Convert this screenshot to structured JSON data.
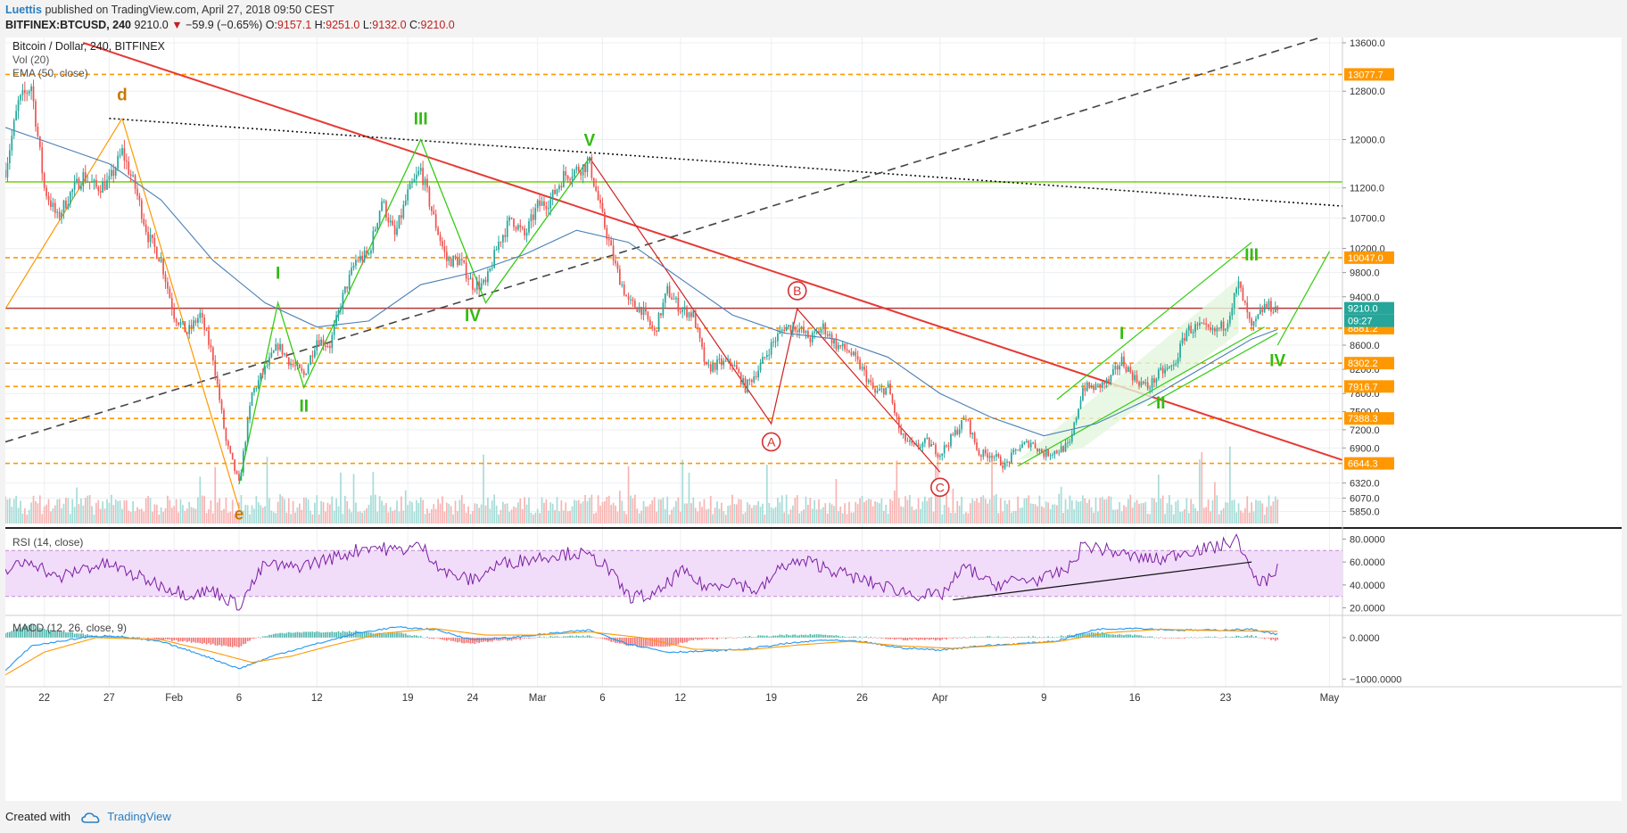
{
  "header": {
    "author": "Luettis",
    "published_text": "published on TradingView.com, April 27, 2018 09:50 CEST",
    "symbol": "BITFINEX:BTCUSD, 240",
    "last": "9210.0",
    "change_arrow": "▼",
    "change": "−59.9 (−0.65%)",
    "ohlc": [
      {
        "k": "O:",
        "v": "9157.1"
      },
      {
        "k": "H:",
        "v": "9251.0"
      },
      {
        "k": "L:",
        "v": "9132.0"
      },
      {
        "k": "C:",
        "v": "9210.0"
      }
    ]
  },
  "footer": {
    "created_with": "Created with",
    "brand": "TradingView"
  },
  "chart_data": {
    "type": "candlestick",
    "title": "Bitcoin / Dollar, 240, BITFINEX",
    "indicators": [
      "Vol (20)",
      "EMA (50, close)"
    ],
    "x_range": [
      "2018-01-19",
      "2018-05-02"
    ],
    "x_ticks": [
      {
        "date": "2018-01-22",
        "label": "22"
      },
      {
        "date": "2018-01-27",
        "label": "27"
      },
      {
        "date": "2018-02-01",
        "label": "Feb"
      },
      {
        "date": "2018-02-06",
        "label": "6"
      },
      {
        "date": "2018-02-12",
        "label": "12"
      },
      {
        "date": "2018-02-19",
        "label": "19"
      },
      {
        "date": "2018-02-24",
        "label": "24"
      },
      {
        "date": "2018-03-01",
        "label": "Mar"
      },
      {
        "date": "2018-03-06",
        "label": "6"
      },
      {
        "date": "2018-03-12",
        "label": "12"
      },
      {
        "date": "2018-03-19",
        "label": "19"
      },
      {
        "date": "2018-03-26",
        "label": "26"
      },
      {
        "date": "2018-04-01",
        "label": "Apr"
      },
      {
        "date": "2018-04-09",
        "label": "9"
      },
      {
        "date": "2018-04-16",
        "label": "16"
      },
      {
        "date": "2018-04-23",
        "label": "23"
      },
      {
        "date": "2018-05-01",
        "label": "May"
      }
    ],
    "price_axis": {
      "range": [
        5650,
        13600
      ],
      "ticks": [
        "13600.0",
        "12800.0",
        "12000.0",
        "11200.0",
        "10700.0",
        "10200.0",
        "9800.0",
        "9400.0",
        "8600.0",
        "8200.0",
        "7800.0",
        "7500.0",
        "7200.0",
        "6900.0",
        "6320.0",
        "6070.0",
        "5850.0"
      ]
    },
    "price_path": [
      [
        "2018-01-19",
        11500
      ],
      [
        "2018-01-20",
        12600
      ],
      [
        "2018-01-21",
        12900
      ],
      [
        "2018-01-22",
        11200
      ],
      [
        "2018-01-23",
        10700
      ],
      [
        "2018-01-24",
        11100
      ],
      [
        "2018-01-25",
        11400
      ],
      [
        "2018-01-26",
        11200
      ],
      [
        "2018-01-27",
        11300
      ],
      [
        "2018-01-28",
        11800
      ],
      [
        "2018-01-29",
        11200
      ],
      [
        "2018-01-30",
        10400
      ],
      [
        "2018-01-31",
        10000
      ],
      [
        "2018-02-01",
        9100
      ],
      [
        "2018-02-02",
        8800
      ],
      [
        "2018-02-03",
        9100
      ],
      [
        "2018-02-04",
        8400
      ],
      [
        "2018-02-05",
        7000
      ],
      [
        "2018-02-06",
        6300
      ],
      [
        "2018-02-07",
        7800
      ],
      [
        "2018-02-08",
        8200
      ],
      [
        "2018-02-09",
        8600
      ],
      [
        "2018-02-10",
        8300
      ],
      [
        "2018-02-11",
        8100
      ],
      [
        "2018-02-12",
        8700
      ],
      [
        "2018-02-13",
        8600
      ],
      [
        "2018-02-14",
        9400
      ],
      [
        "2018-02-15",
        10000
      ],
      [
        "2018-02-16",
        10100
      ],
      [
        "2018-02-17",
        11000
      ],
      [
        "2018-02-18",
        10400
      ],
      [
        "2018-02-19",
        11100
      ],
      [
        "2018-02-20",
        11500
      ],
      [
        "2018-02-21",
        10700
      ],
      [
        "2018-02-22",
        10000
      ],
      [
        "2018-02-23",
        10000
      ],
      [
        "2018-02-24",
        9600
      ],
      [
        "2018-02-25",
        9600
      ],
      [
        "2018-02-26",
        10300
      ],
      [
        "2018-02-27",
        10700
      ],
      [
        "2018-02-28",
        10400
      ],
      [
        "2018-03-01",
        10900
      ],
      [
        "2018-03-02",
        11000
      ],
      [
        "2018-03-03",
        11400
      ],
      [
        "2018-03-04",
        11500
      ],
      [
        "2018-03-05",
        11600
      ],
      [
        "2018-03-06",
        10700
      ],
      [
        "2018-03-07",
        9900
      ],
      [
        "2018-03-08",
        9300
      ],
      [
        "2018-03-09",
        9200
      ],
      [
        "2018-03-10",
        8800
      ],
      [
        "2018-03-11",
        9500
      ],
      [
        "2018-03-12",
        9200
      ],
      [
        "2018-03-13",
        9100
      ],
      [
        "2018-03-14",
        8200
      ],
      [
        "2018-03-15",
        8300
      ],
      [
        "2018-03-16",
        8300
      ],
      [
        "2018-03-17",
        7900
      ],
      [
        "2018-03-18",
        8200
      ],
      [
        "2018-03-19",
        8600
      ],
      [
        "2018-03-20",
        8900
      ],
      [
        "2018-03-21",
        8900
      ],
      [
        "2018-03-22",
        8700
      ],
      [
        "2018-03-23",
        8900
      ],
      [
        "2018-03-24",
        8600
      ],
      [
        "2018-03-25",
        8500
      ],
      [
        "2018-03-26",
        8200
      ],
      [
        "2018-03-27",
        7800
      ],
      [
        "2018-03-28",
        7900
      ],
      [
        "2018-03-29",
        7100
      ],
      [
        "2018-03-30",
        6900
      ],
      [
        "2018-03-31",
        7000
      ],
      [
        "2018-04-01",
        6800
      ],
      [
        "2018-04-02",
        7100
      ],
      [
        "2018-04-03",
        7400
      ],
      [
        "2018-04-04",
        6800
      ],
      [
        "2018-04-05",
        6800
      ],
      [
        "2018-04-06",
        6600
      ],
      [
        "2018-04-07",
        6900
      ],
      [
        "2018-04-08",
        7000
      ],
      [
        "2018-04-09",
        6800
      ],
      [
        "2018-04-10",
        6850
      ],
      [
        "2018-04-11",
        6950
      ],
      [
        "2018-04-12",
        7900
      ],
      [
        "2018-04-13",
        7900
      ],
      [
        "2018-04-14",
        8000
      ],
      [
        "2018-04-15",
        8350
      ],
      [
        "2018-04-16",
        8050
      ],
      [
        "2018-04-17",
        7900
      ],
      [
        "2018-04-18",
        8150
      ],
      [
        "2018-04-19",
        8250
      ],
      [
        "2018-04-20",
        8850
      ],
      [
        "2018-04-21",
        8900
      ],
      [
        "2018-04-22",
        8800
      ],
      [
        "2018-04-23",
        8950
      ],
      [
        "2018-04-24",
        9600
      ],
      [
        "2018-04-25",
        8850
      ],
      [
        "2018-04-26",
        9250
      ],
      [
        "2018-04-27",
        9210
      ]
    ],
    "ema_path": [
      [
        "2018-01-19",
        12200
      ],
      [
        "2018-01-23",
        11900
      ],
      [
        "2018-01-27",
        11600
      ],
      [
        "2018-01-31",
        11000
      ],
      [
        "2018-02-04",
        10000
      ],
      [
        "2018-02-08",
        9300
      ],
      [
        "2018-02-12",
        8900
      ],
      [
        "2018-02-16",
        9000
      ],
      [
        "2018-02-20",
        9600
      ],
      [
        "2018-02-24",
        9800
      ],
      [
        "2018-02-28",
        10100
      ],
      [
        "2018-03-04",
        10500
      ],
      [
        "2018-03-08",
        10300
      ],
      [
        "2018-03-12",
        9700
      ],
      [
        "2018-03-16",
        9100
      ],
      [
        "2018-03-20",
        8800
      ],
      [
        "2018-03-24",
        8700
      ],
      [
        "2018-03-28",
        8400
      ],
      [
        "2018-04-01",
        7800
      ],
      [
        "2018-04-05",
        7400
      ],
      [
        "2018-04-09",
        7100
      ],
      [
        "2018-04-13",
        7300
      ],
      [
        "2018-04-17",
        7700
      ],
      [
        "2018-04-21",
        8200
      ],
      [
        "2018-04-25",
        8700
      ],
      [
        "2018-04-27",
        8860
      ]
    ],
    "horizontal_levels": [
      {
        "price": 13077.7,
        "label": "13077.7",
        "style": "dashed-orange"
      },
      {
        "price": 11300,
        "label": "",
        "style": "solid-green"
      },
      {
        "price": 10047.0,
        "label": "10047.0",
        "style": "dashed-orange"
      },
      {
        "price": 9210.0,
        "label": "9210.0",
        "style": "solid-red"
      },
      {
        "price": 8881.2,
        "label": "8881.2",
        "style": "dashed-orange"
      },
      {
        "price": 8302.2,
        "label": "8302.2",
        "style": "dashed-orange"
      },
      {
        "price": 7916.7,
        "label": "7916.7",
        "style": "dashed-orange"
      },
      {
        "price": 7388.3,
        "label": "7388.3",
        "style": "dashed-orange"
      },
      {
        "price": 6644.3,
        "label": "6644.3",
        "style": "dashed-orange"
      }
    ],
    "countdown_label": "09:27",
    "trend_lines": [
      {
        "from": [
          "2018-01-25",
          13600
        ],
        "to": [
          "2018-05-02",
          6700
        ],
        "style": "solid-red"
      },
      {
        "from": [
          "2018-01-27",
          12350
        ],
        "to": [
          "2018-05-02",
          10900
        ],
        "style": "dotted-black"
      },
      {
        "from": [
          "2018-01-19",
          7000
        ],
        "to": [
          "2018-05-02",
          13800
        ],
        "style": "dashed-black"
      }
    ],
    "wave_labels": [
      {
        "text": "d",
        "date": "2018-01-28",
        "price": 12650,
        "color": "orange"
      },
      {
        "text": "e",
        "date": "2018-02-06",
        "price": 5720,
        "color": "orange"
      },
      {
        "text": "I",
        "date": "2018-02-09",
        "price": 9700,
        "color": "green"
      },
      {
        "text": "II",
        "date": "2018-02-11",
        "price": 7500,
        "color": "green"
      },
      {
        "text": "III",
        "date": "2018-02-20",
        "price": 12250,
        "color": "green"
      },
      {
        "text": "IV",
        "date": "2018-02-24",
        "price": 9000,
        "color": "green"
      },
      {
        "text": "V",
        "date": "2018-03-05",
        "price": 11900,
        "color": "green"
      },
      {
        "text": "A",
        "date": "2018-03-19",
        "price": 7000,
        "color": "red-circle"
      },
      {
        "text": "B",
        "date": "2018-03-21",
        "price": 9500,
        "color": "red-circle"
      },
      {
        "text": "C",
        "date": "2018-04-01",
        "price": 6250,
        "color": "red-circle"
      },
      {
        "text": "I",
        "date": "2018-04-15",
        "price": 8700,
        "color": "green"
      },
      {
        "text": "II",
        "date": "2018-04-18",
        "price": 7550,
        "color": "green"
      },
      {
        "text": "III",
        "date": "2018-04-25",
        "price": 10000,
        "color": "green"
      },
      {
        "text": "IV",
        "date": "2018-04-27",
        "price": 8250,
        "color": "green"
      }
    ],
    "rsi": {
      "label": "RSI (14, close)",
      "range": [
        15,
        85
      ],
      "levels": [
        30,
        70
      ],
      "ticks": [
        "80.0000",
        "60.0000",
        "40.0000",
        "20.0000"
      ],
      "path": [
        [
          "2018-01-19",
          52
        ],
        [
          "2018-01-21",
          62
        ],
        [
          "2018-01-23",
          45
        ],
        [
          "2018-01-25",
          55
        ],
        [
          "2018-01-27",
          58
        ],
        [
          "2018-01-29",
          48
        ],
        [
          "2018-01-31",
          40
        ],
        [
          "2018-02-02",
          32
        ],
        [
          "2018-02-04",
          35
        ],
        [
          "2018-02-06",
          22
        ],
        [
          "2018-02-08",
          58
        ],
        [
          "2018-02-10",
          55
        ],
        [
          "2018-02-12",
          60
        ],
        [
          "2018-02-14",
          66
        ],
        [
          "2018-02-16",
          74
        ],
        [
          "2018-02-18",
          70
        ],
        [
          "2018-02-20",
          74
        ],
        [
          "2018-02-22",
          50
        ],
        [
          "2018-02-24",
          44
        ],
        [
          "2018-02-26",
          58
        ],
        [
          "2018-02-28",
          62
        ],
        [
          "2018-03-02",
          66
        ],
        [
          "2018-03-04",
          68
        ],
        [
          "2018-03-06",
          60
        ],
        [
          "2018-03-08",
          30
        ],
        [
          "2018-03-10",
          30
        ],
        [
          "2018-03-12",
          52
        ],
        [
          "2018-03-14",
          38
        ],
        [
          "2018-03-16",
          44
        ],
        [
          "2018-03-18",
          34
        ],
        [
          "2018-03-20",
          58
        ],
        [
          "2018-03-22",
          60
        ],
        [
          "2018-03-24",
          52
        ],
        [
          "2018-03-26",
          44
        ],
        [
          "2018-03-28",
          38
        ],
        [
          "2018-03-30",
          32
        ],
        [
          "2018-04-01",
          30
        ],
        [
          "2018-04-03",
          56
        ],
        [
          "2018-04-05",
          40
        ],
        [
          "2018-04-07",
          44
        ],
        [
          "2018-04-09",
          45
        ],
        [
          "2018-04-11",
          55
        ],
        [
          "2018-04-12",
          75
        ],
        [
          "2018-04-14",
          70
        ],
        [
          "2018-04-16",
          64
        ],
        [
          "2018-04-18",
          62
        ],
        [
          "2018-04-20",
          70
        ],
        [
          "2018-04-22",
          72
        ],
        [
          "2018-04-24",
          80
        ],
        [
          "2018-04-25",
          48
        ],
        [
          "2018-04-26",
          42
        ],
        [
          "2018-04-27",
          56
        ]
      ],
      "trend_line": {
        "from": [
          "2018-04-02",
          27
        ],
        "to": [
          "2018-04-25",
          60
        ]
      }
    },
    "macd": {
      "label": "MACD (12, 26, close, 9)",
      "range": [
        -1100,
        450
      ],
      "ticks": [
        "0.0000",
        "−1000.0000"
      ],
      "macd_path": [
        [
          "2018-01-19",
          -800
        ],
        [
          "2018-01-21",
          -200
        ],
        [
          "2018-01-23",
          -100
        ],
        [
          "2018-01-25",
          0
        ],
        [
          "2018-01-27",
          50
        ],
        [
          "2018-01-31",
          -100
        ],
        [
          "2018-02-03",
          -400
        ],
        [
          "2018-02-06",
          -750
        ],
        [
          "2018-02-09",
          -400
        ],
        [
          "2018-02-12",
          -150
        ],
        [
          "2018-02-15",
          100
        ],
        [
          "2018-02-18",
          250
        ],
        [
          "2018-02-21",
          200
        ],
        [
          "2018-02-24",
          -50
        ],
        [
          "2018-02-27",
          0
        ],
        [
          "2018-03-02",
          100
        ],
        [
          "2018-03-05",
          180
        ],
        [
          "2018-03-08",
          -150
        ],
        [
          "2018-03-11",
          -350
        ],
        [
          "2018-03-14",
          -330
        ],
        [
          "2018-03-17",
          -280
        ],
        [
          "2018-03-20",
          -150
        ],
        [
          "2018-03-23",
          -60
        ],
        [
          "2018-03-26",
          -100
        ],
        [
          "2018-03-29",
          -250
        ],
        [
          "2018-04-01",
          -300
        ],
        [
          "2018-04-04",
          -200
        ],
        [
          "2018-04-07",
          -150
        ],
        [
          "2018-04-10",
          -80
        ],
        [
          "2018-04-13",
          200
        ],
        [
          "2018-04-16",
          230
        ],
        [
          "2018-04-19",
          180
        ],
        [
          "2018-04-22",
          180
        ],
        [
          "2018-04-25",
          200
        ],
        [
          "2018-04-27",
          80
        ]
      ],
      "signal_path": [
        [
          "2018-01-19",
          -900
        ],
        [
          "2018-01-22",
          -350
        ],
        [
          "2018-01-26",
          0
        ],
        [
          "2018-01-31",
          -50
        ],
        [
          "2018-02-04",
          -350
        ],
        [
          "2018-02-07",
          -600
        ],
        [
          "2018-02-10",
          -450
        ],
        [
          "2018-02-13",
          -200
        ],
        [
          "2018-02-17",
          100
        ],
        [
          "2018-02-21",
          220
        ],
        [
          "2018-02-25",
          60
        ],
        [
          "2018-03-01",
          60
        ],
        [
          "2018-03-05",
          140
        ],
        [
          "2018-03-09",
          0
        ],
        [
          "2018-03-13",
          -280
        ],
        [
          "2018-03-17",
          -300
        ],
        [
          "2018-03-21",
          -180
        ],
        [
          "2018-03-25",
          -90
        ],
        [
          "2018-03-29",
          -200
        ],
        [
          "2018-04-02",
          -260
        ],
        [
          "2018-04-06",
          -180
        ],
        [
          "2018-04-10",
          -100
        ],
        [
          "2018-04-14",
          120
        ],
        [
          "2018-04-18",
          200
        ],
        [
          "2018-04-22",
          170
        ],
        [
          "2018-04-27",
          150
        ]
      ]
    }
  },
  "colors": {
    "up": "#26a69a",
    "down": "#ef5350",
    "orange_level": "#ff9800",
    "trend_red": "#e53935",
    "green_wave": "#33cc11",
    "red_wave": "#cc2222",
    "rsi_line": "#7b1fa2",
    "rsi_band": "#f1dcfa",
    "macd_line": "#2196f3",
    "signal_line": "#ff9800"
  }
}
